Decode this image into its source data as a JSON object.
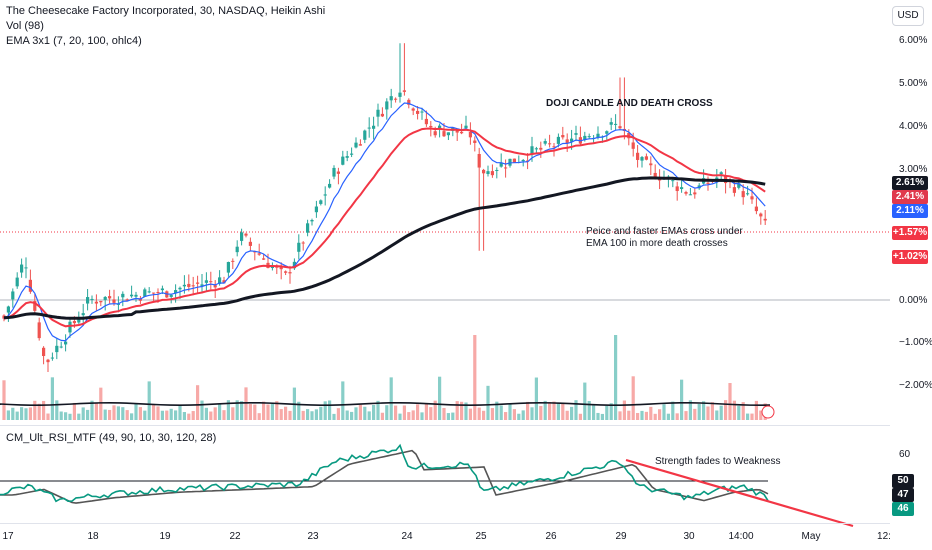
{
  "legend": {
    "symbol": "The Cheesecake Factory Incorporated, 30, NASDAQ, Heikin Ashi",
    "volume": "Vol (98)",
    "ema": "EMA 3x1 (7, 20, 100, ohlc4)",
    "rsi": "CM_Ult_RSI_MTF (49, 90, 10, 30, 120, 28)"
  },
  "currency_button": "USD",
  "price_axis": {
    "ticks": [
      "6.00%",
      "5.00%",
      "4.00%",
      "3.00%",
      "0.00%",
      "−1.00%",
      "−2.00%"
    ],
    "tags": [
      {
        "text": "2.61%",
        "color": "#131722"
      },
      {
        "text": "2.41%",
        "color": "#e0394d"
      },
      {
        "text": "2.11%",
        "color": "#2962ff"
      },
      {
        "text": "+1.57%",
        "color": "#f23645"
      },
      {
        "text": "+1.02%",
        "color": "#f23645"
      }
    ]
  },
  "rsi_axis": {
    "ticks": [
      "60"
    ],
    "tags": [
      {
        "text": "50",
        "color": "#131722"
      },
      {
        "text": "47",
        "color": "#131722"
      },
      {
        "text": "46",
        "color": "#089981"
      }
    ]
  },
  "time_axis": [
    "17",
    "18",
    "19",
    "22",
    "23",
    "24",
    "25",
    "26",
    "29",
    "30",
    "14:00",
    "May",
    "12:"
  ],
  "annotations": {
    "doji": "DOJI CANDLE AND DEATH CROSS",
    "cross_line1": "Peice and faster  EMAs cross under",
    "cross_line2": "EMA 100 in more death crosses",
    "strength": "Strength fades to Weakness"
  },
  "colors": {
    "up": "#26a69a",
    "down": "#ef5350",
    "ema_fast": "#2962ff",
    "ema_mid": "#f23645",
    "ema_slow": "#131722",
    "rsi": "#089981"
  },
  "chart_data": {
    "type": "candlestick",
    "y_unit": "%",
    "price_pane": {
      "y_ticks": [
        6,
        5,
        4,
        3,
        0,
        -1,
        -2
      ],
      "close_anchors": [
        {
          "x": "17",
          "y": -0.5
        },
        {
          "x": "17",
          "y": 1.0
        },
        {
          "x": "18",
          "y": -1.5
        },
        {
          "x": "18",
          "y": 0.0
        },
        {
          "x": "19",
          "y": 0.2
        },
        {
          "x": "22",
          "y": 0.5
        },
        {
          "x": "22",
          "y": 1.5
        },
        {
          "x": "23",
          "y": 0.5
        },
        {
          "x": "23",
          "y": 3.0
        },
        {
          "x": "24",
          "y": 5.0
        },
        {
          "x": "24",
          "y": 4.0
        },
        {
          "x": "25",
          "y": 3.9
        },
        {
          "x": "25",
          "y": 3.0
        },
        {
          "x": "26",
          "y": 3.6
        },
        {
          "x": "29",
          "y": 4.1
        },
        {
          "x": "29",
          "y": 3.2
        },
        {
          "x": "30",
          "y": 2.5
        },
        {
          "x": "30",
          "y": 2.9
        },
        {
          "x": "14:00",
          "y": 2.5
        },
        {
          "x": "14:00",
          "y": 1.6
        }
      ],
      "ema_last": {
        "ema7": 2.11,
        "ema20": 2.41,
        "ema100": 2.61
      },
      "levels": [
        1.57,
        1.02
      ]
    },
    "rsi_pane": {
      "last": {
        "rsi": 46,
        "signal": 47,
        "level": 50
      },
      "y_ticks": [
        60
      ]
    }
  }
}
